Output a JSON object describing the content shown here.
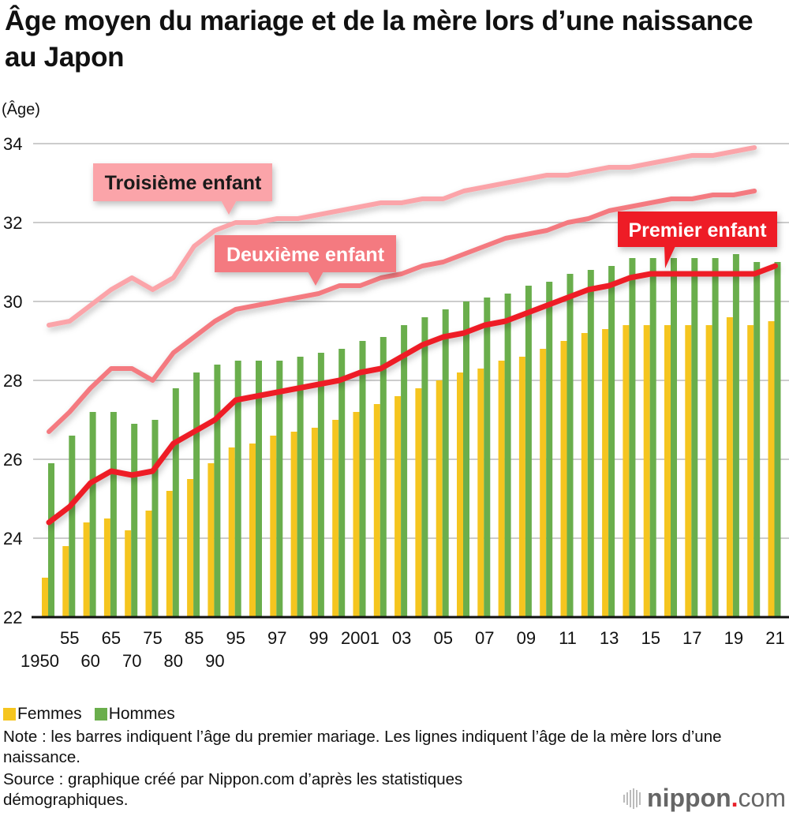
{
  "title": "Âge moyen du mariage et de la mère lors d’une naissance au Japon",
  "legend": {
    "women": "Femmes",
    "men": "Hommes"
  },
  "note": "Note : les barres indiquent l’âge du premier mariage. Les lignes indiquent l’âge de la mère lors d’une naissance.",
  "source": "Source : graphique créé par Nippon.com d’après les statistiques démographiques.",
  "logo": {
    "name": "nippon",
    "dot": ".",
    "suffix": "com"
  },
  "colors": {
    "women": "#f5c51f",
    "men": "#6aae4c",
    "first": "#ee1f28",
    "second": "#f47a80",
    "third": "#fba4a9",
    "grid": "#cccccc"
  },
  "chart_data": {
    "type": "bar",
    "title": "Âge moyen du mariage et de la mère lors d’une naissance au Japon",
    "ylabel": "(Âge)",
    "xlabel": "",
    "ylim": [
      22,
      34
    ],
    "yticks": [
      "22",
      "24",
      "26",
      "28",
      "30",
      "32",
      "34"
    ],
    "grid": true,
    "legend_position": "bottom-left",
    "categories": [
      "1950",
      "1955",
      "1960",
      "1965",
      "1970",
      "1975",
      "1980",
      "1985",
      "1990",
      "1995",
      "1996",
      "1997",
      "1998",
      "1999",
      "2000",
      "2001",
      "2002",
      "2003",
      "2004",
      "2005",
      "2006",
      "2007",
      "2008",
      "2009",
      "2010",
      "2011",
      "2012",
      "2013",
      "2014",
      "2015",
      "2016",
      "2017",
      "2018",
      "2019",
      "2020",
      "2021"
    ],
    "tick_labels": [
      {
        "label": "1950",
        "row": 2
      },
      {
        "label": "55",
        "row": 1
      },
      {
        "label": "60",
        "row": 2
      },
      {
        "label": "65",
        "row": 1
      },
      {
        "label": "70",
        "row": 2
      },
      {
        "label": "75",
        "row": 1
      },
      {
        "label": "80",
        "row": 2
      },
      {
        "label": "85",
        "row": 1
      },
      {
        "label": "90",
        "row": 2
      },
      {
        "label": "95",
        "row": 1
      },
      {
        "label": "",
        "row": 1
      },
      {
        "label": "97",
        "row": 1
      },
      {
        "label": "",
        "row": 1
      },
      {
        "label": "99",
        "row": 1
      },
      {
        "label": "",
        "row": 1
      },
      {
        "label": "2001",
        "row": 1
      },
      {
        "label": "",
        "row": 1
      },
      {
        "label": "03",
        "row": 1
      },
      {
        "label": "",
        "row": 1
      },
      {
        "label": "05",
        "row": 1
      },
      {
        "label": "",
        "row": 1
      },
      {
        "label": "07",
        "row": 1
      },
      {
        "label": "",
        "row": 1
      },
      {
        "label": "09",
        "row": 1
      },
      {
        "label": "",
        "row": 1
      },
      {
        "label": "11",
        "row": 1
      },
      {
        "label": "",
        "row": 1
      },
      {
        "label": "13",
        "row": 1
      },
      {
        "label": "",
        "row": 1
      },
      {
        "label": "15",
        "row": 1
      },
      {
        "label": "",
        "row": 1
      },
      {
        "label": "17",
        "row": 1
      },
      {
        "label": "",
        "row": 1
      },
      {
        "label": "19",
        "row": 1
      },
      {
        "label": "",
        "row": 1
      },
      {
        "label": "21",
        "row": 1
      }
    ],
    "bar_series": [
      {
        "name": "Femmes",
        "key": "women",
        "values": [
          23.0,
          23.8,
          24.4,
          24.5,
          24.2,
          24.7,
          25.2,
          25.5,
          25.9,
          26.3,
          26.4,
          26.6,
          26.7,
          26.8,
          27.0,
          27.2,
          27.4,
          27.6,
          27.8,
          28.0,
          28.2,
          28.3,
          28.5,
          28.6,
          28.8,
          29.0,
          29.2,
          29.3,
          29.4,
          29.4,
          29.4,
          29.4,
          29.4,
          29.6,
          29.4,
          29.5
        ]
      },
      {
        "name": "Hommes",
        "key": "men",
        "values": [
          25.9,
          26.6,
          27.2,
          27.2,
          26.9,
          27.0,
          27.8,
          28.2,
          28.4,
          28.5,
          28.5,
          28.5,
          28.6,
          28.7,
          28.8,
          29.0,
          29.1,
          29.4,
          29.6,
          29.8,
          30.0,
          30.1,
          30.2,
          30.4,
          30.5,
          30.7,
          30.8,
          30.9,
          31.1,
          31.1,
          31.1,
          31.1,
          31.1,
          31.2,
          31.0,
          31.0
        ]
      }
    ],
    "line_series": [
      {
        "name": "Troisième enfant",
        "key": "third",
        "values": [
          29.4,
          29.5,
          29.9,
          30.3,
          30.6,
          30.3,
          30.6,
          31.4,
          31.8,
          32.0,
          32.0,
          32.1,
          32.1,
          32.2,
          32.3,
          32.4,
          32.5,
          32.5,
          32.6,
          32.6,
          32.8,
          32.9,
          33.0,
          33.1,
          33.2,
          33.2,
          33.3,
          33.4,
          33.4,
          33.5,
          33.6,
          33.7,
          33.7,
          33.8,
          33.9,
          null
        ]
      },
      {
        "name": "Deuxième enfant",
        "key": "second",
        "values": [
          26.7,
          27.2,
          27.8,
          28.3,
          28.3,
          28.0,
          28.7,
          29.1,
          29.5,
          29.8,
          29.9,
          30.0,
          30.1,
          30.2,
          30.4,
          30.4,
          30.6,
          30.7,
          30.9,
          31.0,
          31.2,
          31.4,
          31.6,
          31.7,
          31.8,
          32.0,
          32.1,
          32.3,
          32.4,
          32.5,
          32.6,
          32.6,
          32.7,
          32.7,
          32.8,
          null
        ]
      },
      {
        "name": "Premier enfant",
        "key": "first",
        "values": [
          24.4,
          24.8,
          25.4,
          25.7,
          25.6,
          25.7,
          26.4,
          26.7,
          27.0,
          27.5,
          27.6,
          27.7,
          27.8,
          27.9,
          28.0,
          28.2,
          28.3,
          28.6,
          28.9,
          29.1,
          29.2,
          29.4,
          29.5,
          29.7,
          29.9,
          30.1,
          30.3,
          30.4,
          30.6,
          30.7,
          30.7,
          30.7,
          30.7,
          30.7,
          30.7,
          30.9
        ]
      }
    ]
  }
}
